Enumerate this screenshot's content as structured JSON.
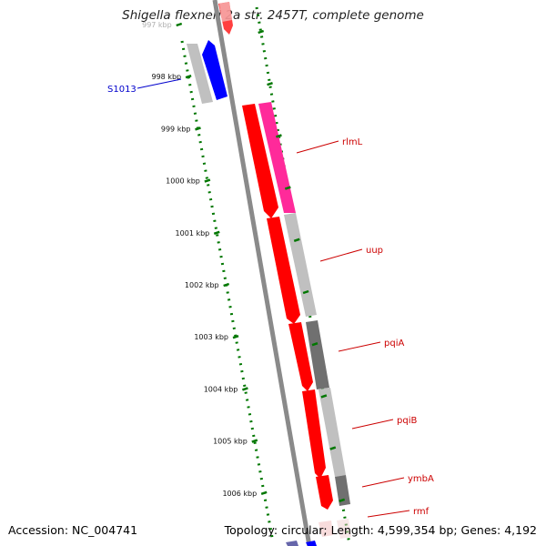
{
  "title": "Shigella flexneri 2a str. 2457T, complete genome",
  "footer": {
    "accession": "Accession: NC_004741",
    "stats": "Topology: circular; Length: 4,599,354 bp; Genes: 4,192"
  },
  "colors": {
    "forward_cds": "#ff0000",
    "reverse_cds": "#0000ff",
    "gc_high": "#888888",
    "gc_low": "#c0c0c0",
    "gc_skew": "#ff2a9a",
    "tick": "#007700",
    "gene_label": "#cc0000",
    "feature_label": "#0000cc"
  },
  "scale": {
    "ticks": [
      {
        "kbp": 997,
        "label": "997 kbp"
      },
      {
        "kbp": 998,
        "label": "998 kbp"
      },
      {
        "kbp": 999,
        "label": "999 kbp"
      },
      {
        "kbp": 1000,
        "label": "1000 kbp"
      },
      {
        "kbp": 1001,
        "label": "1001 kbp"
      },
      {
        "kbp": 1002,
        "label": "1002 kbp"
      },
      {
        "kbp": 1003,
        "label": "1003 kbp"
      },
      {
        "kbp": 1004,
        "label": "1004 kbp"
      },
      {
        "kbp": 1005,
        "label": "1005 kbp"
      },
      {
        "kbp": 1006,
        "label": "1006 kbp"
      }
    ]
  },
  "labels": {
    "genes": [
      {
        "name": "rlmL"
      },
      {
        "name": "uup"
      },
      {
        "name": "pqiA"
      },
      {
        "name": "pqiB"
      },
      {
        "name": "ymbA"
      },
      {
        "name": "rmf"
      }
    ],
    "features": [
      {
        "name": "S1013"
      }
    ]
  }
}
